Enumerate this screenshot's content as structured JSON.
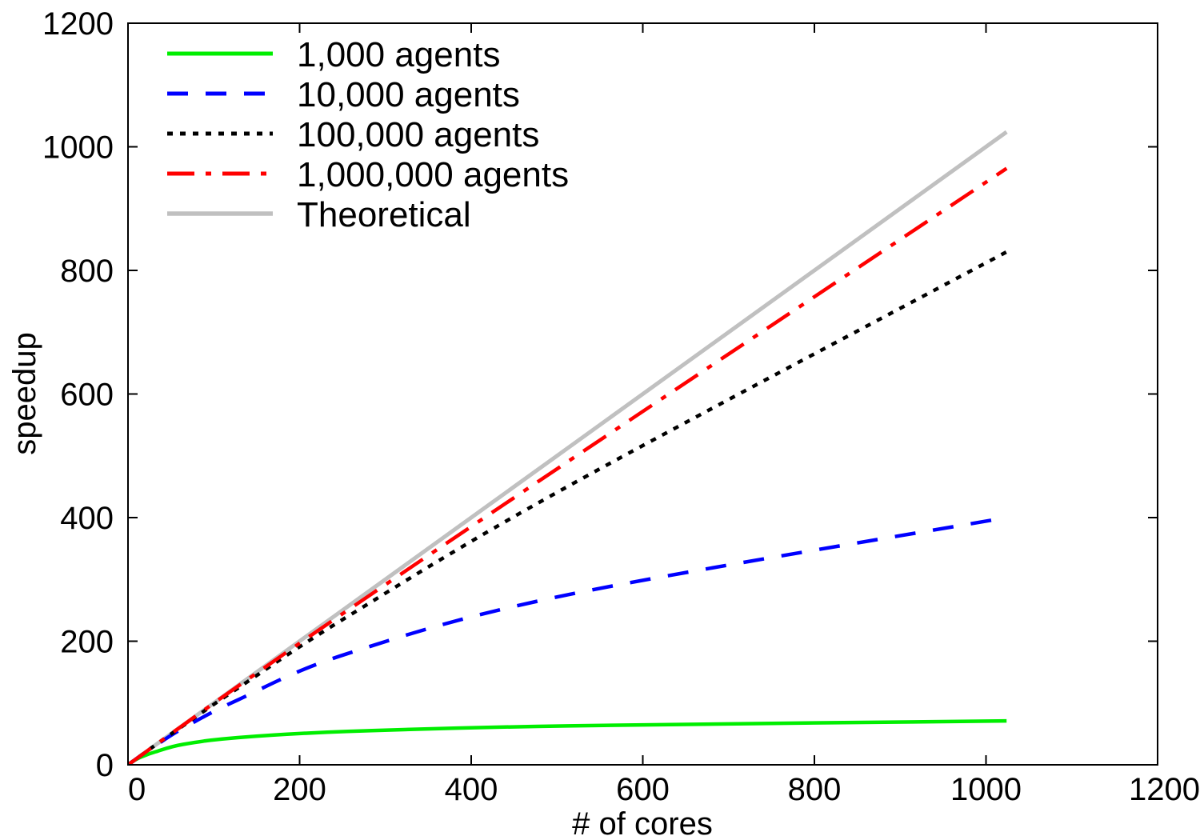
{
  "chart_data": {
    "type": "line",
    "title": "",
    "xlabel": "# of cores",
    "ylabel": "speedup",
    "xlim": [
      0,
      1200
    ],
    "ylim": [
      0,
      1200
    ],
    "xticks": [
      "0",
      "200",
      "400",
      "600",
      "800",
      "1000",
      "1200"
    ],
    "yticks": [
      "0",
      "200",
      "400",
      "600",
      "800",
      "1000",
      "1200"
    ],
    "grid": false,
    "legend_position": "top-left",
    "series": [
      {
        "name": "1,000 agents",
        "color": "#00ee00",
        "style": "solid",
        "x": [
          1,
          8,
          16,
          32,
          64,
          128,
          256,
          512,
          1024
        ],
        "values": [
          1,
          7.5,
          13,
          21,
          33,
          44,
          54,
          63,
          71
        ]
      },
      {
        "name": "10,000 agents",
        "color": "#0000ff",
        "style": "dashed",
        "x": [
          1,
          8,
          16,
          32,
          64,
          128,
          256,
          512,
          1024
        ],
        "values": [
          1,
          8,
          16,
          31,
          59,
          105,
          180,
          275,
          400
        ]
      },
      {
        "name": "100,000 agents",
        "color": "#000000",
        "style": "dotted",
        "x": [
          1,
          8,
          16,
          32,
          64,
          128,
          256,
          512,
          1024
        ],
        "values": [
          1,
          8,
          16,
          32,
          63,
          124,
          240,
          450,
          830
        ]
      },
      {
        "name": "1,000,000 agents",
        "color": "#ff0000",
        "style": "dash-dot",
        "x": [
          1,
          8,
          16,
          32,
          64,
          128,
          256,
          512,
          1024
        ],
        "values": [
          1,
          8,
          16,
          32,
          64,
          127,
          250,
          490,
          965
        ]
      },
      {
        "name": "Theoretical",
        "color": "#c0c0c0",
        "style": "solid",
        "x": [
          1,
          1024
        ],
        "values": [
          1,
          1024
        ]
      }
    ]
  }
}
